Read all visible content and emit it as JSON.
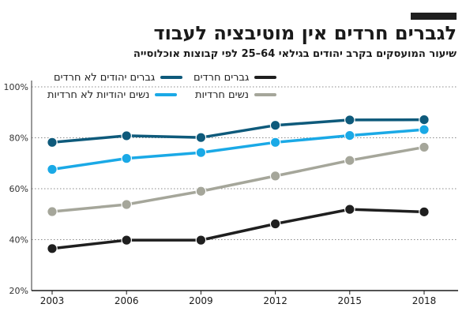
{
  "title": "לגברים חרדים אין מוטיבציה לעבוד",
  "subtitle": "שיעור המועסקים בקרב יהודים בגילאי 64–25 לפי קבוצות אוכלוסייה",
  "chart_data": {
    "type": "line",
    "x": [
      2003,
      2006,
      2009,
      2012,
      2015,
      2018
    ],
    "ylim": [
      20,
      100
    ],
    "yticks": [
      20,
      40,
      60,
      80,
      100
    ],
    "ytick_labels": [
      "20%",
      "40%",
      "60%",
      "80%",
      "100%"
    ],
    "grid": "horizontal dotted",
    "legend_position": "top",
    "series": [
      {
        "name": "גברים חרדים",
        "color": "#1f1f1f",
        "values": [
          36.5,
          39.8,
          39.8,
          46.2,
          51.9,
          50.9
        ]
      },
      {
        "name": "גברים יהודים לא חרדים",
        "color": "#0e5a7b",
        "values": [
          78.2,
          80.8,
          80.1,
          84.9,
          87.0,
          87.1
        ]
      },
      {
        "name": "נשים חרדיות",
        "color": "#a5a69a",
        "values": [
          51.0,
          53.8,
          59.0,
          65.0,
          71.1,
          76.3
        ]
      },
      {
        "name": "נשים יהודיות לא חרדיות",
        "color": "#1aa9e6",
        "values": [
          67.6,
          71.9,
          74.2,
          78.2,
          80.9,
          83.2
        ]
      }
    ]
  }
}
